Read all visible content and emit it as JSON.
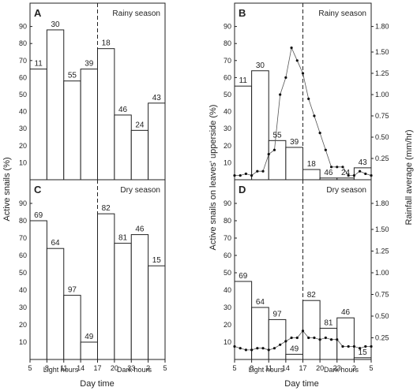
{
  "figure": {
    "y_axis_left": "Active snails (%)",
    "y_axis_right_a": "Active snails on leaves' upperside (%)",
    "y_axis_rain": "Rainfall average (mm/hr)",
    "x_axis_title": "Day time",
    "light_hours": "Light hours",
    "dark_hours": "Dark hours",
    "hour_ticks": [
      "5",
      "8",
      "11",
      "14",
      "17",
      "20",
      "23",
      "2",
      "5"
    ],
    "pct_ticks": [
      "10",
      "20",
      "30",
      "40",
      "50",
      "60",
      "70",
      "80",
      "90"
    ],
    "rain_ticks": [
      "0.25",
      "0.50",
      "0.75",
      "1.00",
      "1.25",
      "1.50",
      "1.80"
    ]
  },
  "chart_data": [
    {
      "type": "bar",
      "panel": "A",
      "season": "Rainy season",
      "xlabel": "Day time",
      "ylabel": "Active snails (%)",
      "ylim": [
        0,
        100
      ],
      "categories": [
        "5-8",
        "8-11",
        "11-14",
        "14-17",
        "17-20",
        "20-23",
        "23-2",
        "2-5"
      ],
      "values": [
        65,
        88,
        58,
        65,
        77,
        38,
        29,
        45
      ],
      "bar_labels": [
        "11",
        "30",
        "55",
        "39",
        "18",
        "46",
        "24",
        "43"
      ]
    },
    {
      "type": "bar",
      "panel": "B",
      "season": "Rainy season",
      "xlabel": "Day time",
      "ylabel": "Active snails on leaves' upperside (%)",
      "y2label": "Rainfall average (mm/hr)",
      "ylim": [
        0,
        100
      ],
      "y2lim": [
        0,
        2.0
      ],
      "categories": [
        "5-8",
        "8-11",
        "11-14",
        "14-17",
        "17-20",
        "20-23",
        "23-2",
        "2-5"
      ],
      "values": [
        55,
        64,
        23,
        19,
        6,
        1,
        1,
        7
      ],
      "bar_labels": [
        "11",
        "30",
        "55",
        "39",
        "18",
        "46",
        "24",
        "43"
      ],
      "rainfall_line": {
        "x": [
          5,
          6,
          7,
          8,
          9,
          10,
          11,
          12,
          13,
          14,
          15,
          16,
          17,
          18,
          19,
          20,
          21,
          22,
          23,
          24,
          25,
          26,
          27,
          28,
          29
        ],
        "y": [
          0.05,
          0.05,
          0.07,
          0.05,
          0.1,
          0.1,
          0.3,
          0.35,
          1.0,
          1.2,
          1.55,
          1.4,
          1.25,
          0.95,
          0.75,
          0.55,
          0.35,
          0.15,
          0.15,
          0.15,
          0.05,
          0.05,
          0.1,
          0.07,
          0.05
        ]
      }
    },
    {
      "type": "bar",
      "panel": "C",
      "season": "Dry season",
      "xlabel": "Day time",
      "ylabel": "Active snails (%)",
      "ylim": [
        0,
        100
      ],
      "categories": [
        "5-8",
        "8-11",
        "11-14",
        "14-17",
        "17-20",
        "20-23",
        "23-2",
        "2-5"
      ],
      "values": [
        80,
        64,
        37,
        10,
        84,
        67,
        72,
        54
      ],
      "bar_labels": [
        "69",
        "64",
        "97",
        "49",
        "82",
        "81",
        "46",
        "15"
      ]
    },
    {
      "type": "bar",
      "panel": "D",
      "season": "Dry season",
      "xlabel": "Day time",
      "ylabel": "Active snails on leaves' upperside (%)",
      "y2label": "Rainfall average (mm/hr)",
      "ylim": [
        0,
        100
      ],
      "y2lim": [
        0,
        2.0
      ],
      "categories": [
        "5-8",
        "8-11",
        "11-14",
        "14-17",
        "17-20",
        "20-23",
        "23-2",
        "2-5"
      ],
      "values": [
        45,
        30,
        23,
        3,
        34,
        18,
        24,
        1
      ],
      "bar_labels": [
        "69",
        "64",
        "97",
        "49",
        "82",
        "81",
        "46",
        "15"
      ],
      "rainfall_line": {
        "x": [
          5,
          6,
          7,
          8,
          9,
          10,
          11,
          12,
          13,
          14,
          15,
          16,
          17,
          18,
          19,
          20,
          21,
          22,
          23,
          24,
          25,
          26,
          27,
          28,
          29
        ],
        "y": [
          0.15,
          0.13,
          0.11,
          0.11,
          0.13,
          0.13,
          0.11,
          0.13,
          0.17,
          0.21,
          0.25,
          0.25,
          0.33,
          0.25,
          0.25,
          0.23,
          0.25,
          0.23,
          0.23,
          0.15,
          0.15,
          0.15,
          0.13,
          0.15,
          0.15
        ]
      }
    }
  ]
}
